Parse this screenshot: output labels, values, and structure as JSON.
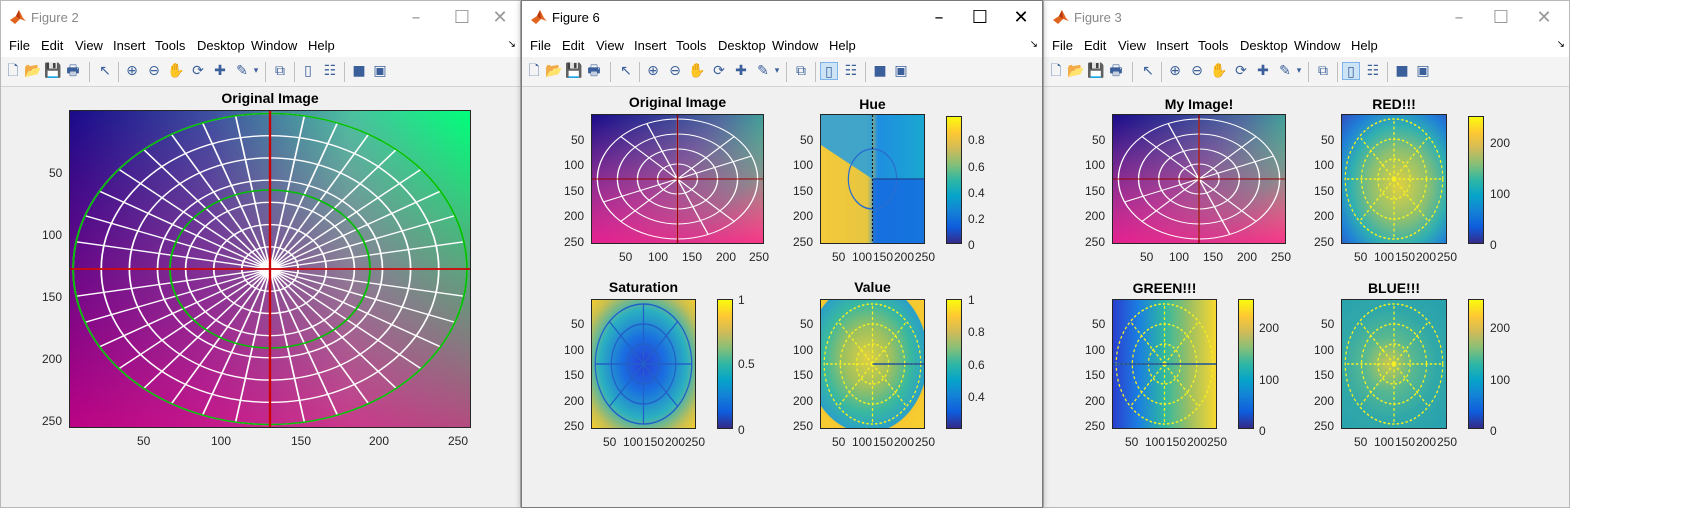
{
  "menu": [
    "File",
    "Edit",
    "View",
    "Insert",
    "Tools",
    "Desktop",
    "Window",
    "Help"
  ],
  "colors": {
    "parula_low": "#352a87",
    "parula_high": "#f9fb0e",
    "crosshair": "#cc0000",
    "ellipse_green": "#00c000"
  },
  "windows": {
    "fig2": {
      "title": "Figure 2",
      "plot": {
        "title": "Original Image",
        "xticks": [
          "50",
          "100",
          "150",
          "200",
          "250"
        ],
        "yticks": [
          "50",
          "100",
          "150",
          "200",
          "250"
        ]
      }
    },
    "fig6": {
      "title": "Figure 6",
      "plots": {
        "orig": {
          "title": "Original Image",
          "xticks": [
            "50",
            "100",
            "150",
            "200",
            "250"
          ],
          "yticks": [
            "50",
            "100",
            "150",
            "200",
            "250"
          ]
        },
        "hue": {
          "title": "Hue",
          "xticks": [
            "50",
            "100",
            "150",
            "200",
            "250"
          ],
          "yticks": [
            "50",
            "100",
            "150",
            "200",
            "250"
          ],
          "cbar": [
            "0.8",
            "0.6",
            "0.4",
            "0.2",
            "0"
          ]
        },
        "sat": {
          "title": "Saturation",
          "xticks": [
            "50",
            "100",
            "150",
            "200",
            "250"
          ],
          "yticks": [
            "50",
            "100",
            "150",
            "200",
            "250"
          ],
          "cbar": [
            "1",
            "0.5",
            "0"
          ]
        },
        "val": {
          "title": "Value",
          "xticks": [
            "50",
            "100",
            "150",
            "200",
            "250"
          ],
          "yticks": [
            "50",
            "100",
            "150",
            "200",
            "250"
          ],
          "cbar": [
            "1",
            "0.8",
            "0.6",
            "0.4"
          ]
        }
      }
    },
    "fig3": {
      "title": "Figure 3",
      "plots": {
        "my": {
          "title": "My Image!",
          "xticks": [
            "50",
            "100",
            "150",
            "200",
            "250"
          ],
          "yticks": [
            "50",
            "100",
            "150",
            "200",
            "250"
          ]
        },
        "red": {
          "title": "RED!!!",
          "xticks": [
            "50",
            "100",
            "150",
            "200",
            "250"
          ],
          "yticks": [
            "50",
            "100",
            "150",
            "200",
            "250"
          ],
          "cbar": [
            "200",
            "100",
            "0"
          ]
        },
        "green": {
          "title": "GREEN!!!",
          "xticks": [
            "50",
            "100",
            "150",
            "200",
            "250"
          ],
          "yticks": [
            "50",
            "100",
            "150",
            "200",
            "250"
          ],
          "cbar": [
            "200",
            "100",
            "0"
          ]
        },
        "blue": {
          "title": "BLUE!!!",
          "xticks": [
            "50",
            "100",
            "150",
            "200",
            "250"
          ],
          "yticks": [
            "50",
            "100",
            "150",
            "200",
            "250"
          ],
          "cbar": [
            "200",
            "100",
            "0"
          ]
        }
      }
    }
  }
}
